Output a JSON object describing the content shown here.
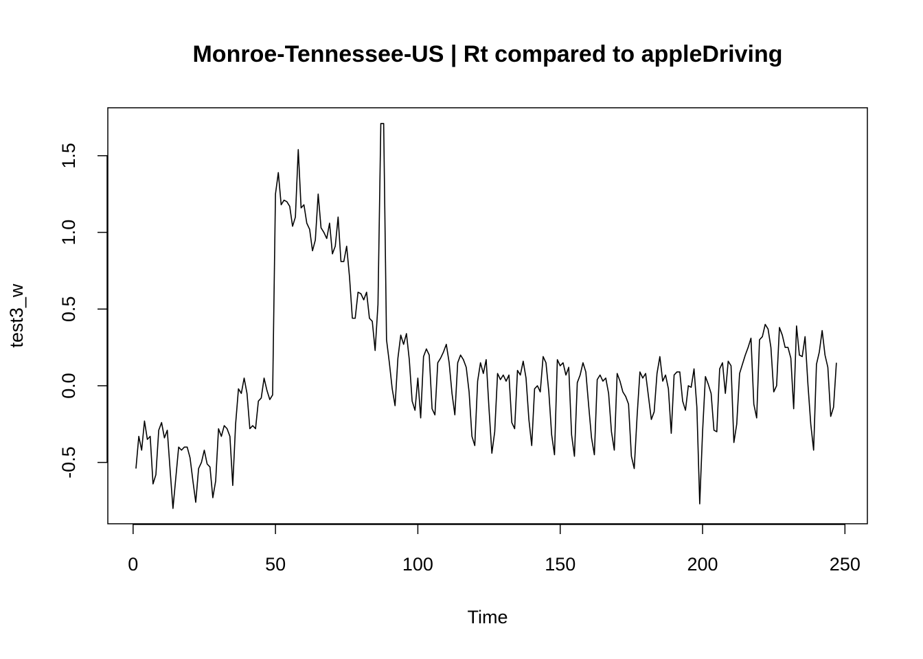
{
  "chart_data": {
    "type": "line",
    "title": "Monroe-Tennessee-US | Rt compared to appleDriving",
    "xlabel": "Time",
    "ylabel": "test3_w",
    "color": "#000000",
    "xlim": [
      -8.88,
      257.88
    ],
    "ylim": [
      -0.9,
      1.8125
    ],
    "xticks": [
      0,
      50,
      100,
      150,
      200,
      250
    ],
    "yticks": [
      -0.5,
      {
        "value": 0,
        "label": "0.0"
      },
      0.5,
      {
        "value": 1,
        "label": "1.0"
      },
      1.5
    ],
    "x": [
      1,
      2,
      3,
      4,
      5,
      6,
      7,
      8,
      9,
      10,
      11,
      12,
      13,
      14,
      15,
      16,
      17,
      18,
      19,
      20,
      21,
      22,
      23,
      24,
      25,
      26,
      27,
      28,
      29,
      30,
      31,
      32,
      33,
      34,
      35,
      36,
      37,
      38,
      39,
      40,
      41,
      42,
      43,
      44,
      45,
      46,
      47,
      48,
      49,
      50,
      51,
      52,
      53,
      54,
      55,
      56,
      57,
      58,
      59,
      60,
      61,
      62,
      63,
      64,
      65,
      66,
      67,
      68,
      69,
      70,
      71,
      72,
      73,
      74,
      75,
      76,
      77,
      78,
      79,
      80,
      81,
      82,
      83,
      84,
      85,
      86,
      87,
      88,
      89,
      90,
      91,
      92,
      93,
      94,
      95,
      96,
      97,
      98,
      99,
      100,
      101,
      102,
      103,
      104,
      105,
      106,
      107,
      108,
      109,
      110,
      111,
      112,
      113,
      114,
      115,
      116,
      117,
      118,
      119,
      120,
      121,
      122,
      123,
      124,
      125,
      126,
      127,
      128,
      129,
      130,
      131,
      132,
      133,
      134,
      135,
      136,
      137,
      138,
      139,
      140,
      141,
      142,
      143,
      144,
      145,
      146,
      147,
      148,
      149,
      150,
      151,
      152,
      153,
      154,
      155,
      156,
      157,
      158,
      159,
      160,
      161,
      162,
      163,
      164,
      165,
      166,
      167,
      168,
      169,
      170,
      171,
      172,
      173,
      174,
      175,
      176,
      177,
      178,
      179,
      180,
      181,
      182,
      183,
      184,
      185,
      186,
      187,
      188,
      189,
      190,
      191,
      192,
      193,
      194,
      195,
      196,
      197,
      198,
      199,
      200,
      201,
      202,
      203,
      204,
      205,
      206,
      207,
      208,
      209,
      210,
      211,
      212,
      213,
      214,
      215,
      216,
      217,
      218,
      219,
      220,
      221,
      222,
      223,
      224,
      225,
      226,
      227,
      228,
      229,
      230,
      231,
      232,
      233,
      234,
      235,
      236,
      237,
      238,
      239,
      240,
      241,
      242,
      243,
      244,
      245,
      246,
      247
    ],
    "values": [
      -0.54,
      -0.33,
      -0.42,
      -0.23,
      -0.35,
      -0.33,
      -0.64,
      -0.58,
      -0.29,
      -0.24,
      -0.34,
      -0.29,
      -0.55,
      -0.8,
      -0.6,
      -0.4,
      -0.42,
      -0.4,
      -0.4,
      -0.47,
      -0.62,
      -0.76,
      -0.54,
      -0.5,
      -0.42,
      -0.51,
      -0.53,
      -0.73,
      -0.62,
      -0.28,
      -0.33,
      -0.26,
      -0.28,
      -0.33,
      -0.65,
      -0.25,
      -0.02,
      -0.05,
      0.05,
      -0.05,
      -0.28,
      -0.26,
      -0.28,
      -0.1,
      -0.08,
      0.05,
      -0.03,
      -0.09,
      -0.06,
      1.25,
      1.39,
      1.18,
      1.21,
      1.2,
      1.17,
      1.04,
      1.1,
      1.54,
      1.16,
      1.18,
      1.06,
      1.02,
      0.88,
      0.95,
      1.25,
      1.03,
      1.0,
      0.96,
      1.06,
      0.86,
      0.91,
      1.1,
      0.81,
      0.81,
      0.91,
      0.71,
      0.44,
      0.44,
      0.61,
      0.6,
      0.56,
      0.61,
      0.44,
      0.42,
      0.23,
      0.53,
      1.71,
      1.71,
      0.3,
      0.15,
      -0.02,
      -0.13,
      0.18,
      0.33,
      0.27,
      0.34,
      0.17,
      -0.1,
      -0.16,
      0.05,
      -0.21,
      0.19,
      0.24,
      0.2,
      -0.15,
      -0.19,
      0.15,
      0.18,
      0.22,
      0.27,
      0.15,
      -0.05,
      -0.19,
      0.15,
      0.2,
      0.17,
      0.12,
      -0.04,
      -0.33,
      -0.39,
      0.03,
      0.15,
      0.08,
      0.17,
      -0.15,
      -0.44,
      -0.3,
      0.08,
      0.04,
      0.07,
      0.03,
      0.07,
      -0.24,
      -0.28,
      0.1,
      0.07,
      0.16,
      0.05,
      -0.22,
      -0.39,
      -0.02,
      0.0,
      -0.04,
      0.19,
      0.15,
      -0.04,
      -0.32,
      -0.45,
      0.17,
      0.13,
      0.15,
      0.07,
      0.12,
      -0.32,
      -0.46,
      0.02,
      0.07,
      0.15,
      0.09,
      -0.13,
      -0.34,
      -0.45,
      0.04,
      0.07,
      0.03,
      0.05,
      -0.05,
      -0.3,
      -0.42,
      0.08,
      0.03,
      -0.04,
      -0.07,
      -0.12,
      -0.46,
      -0.54,
      -0.2,
      0.09,
      0.05,
      0.08,
      -0.07,
      -0.22,
      -0.17,
      0.08,
      0.19,
      0.03,
      0.07,
      -0.02,
      -0.31,
      0.07,
      0.09,
      0.09,
      -0.1,
      -0.16,
      0.0,
      -0.01,
      0.11,
      -0.14,
      -0.77,
      -0.3,
      0.06,
      0.01,
      -0.05,
      -0.29,
      -0.3,
      0.11,
      0.15,
      -0.05,
      0.16,
      0.13,
      -0.37,
      -0.25,
      0.08,
      0.14,
      0.2,
      0.25,
      0.31,
      -0.12,
      -0.21,
      0.3,
      0.32,
      0.4,
      0.37,
      0.25,
      -0.04,
      0.0,
      0.38,
      0.33,
      0.25,
      0.25,
      0.18,
      -0.15,
      0.39,
      0.2,
      0.19,
      0.32,
      0.01,
      -0.25,
      -0.42,
      0.14,
      0.22,
      0.36,
      0.2,
      0.12,
      -0.2,
      -0.14,
      0.15
    ]
  }
}
